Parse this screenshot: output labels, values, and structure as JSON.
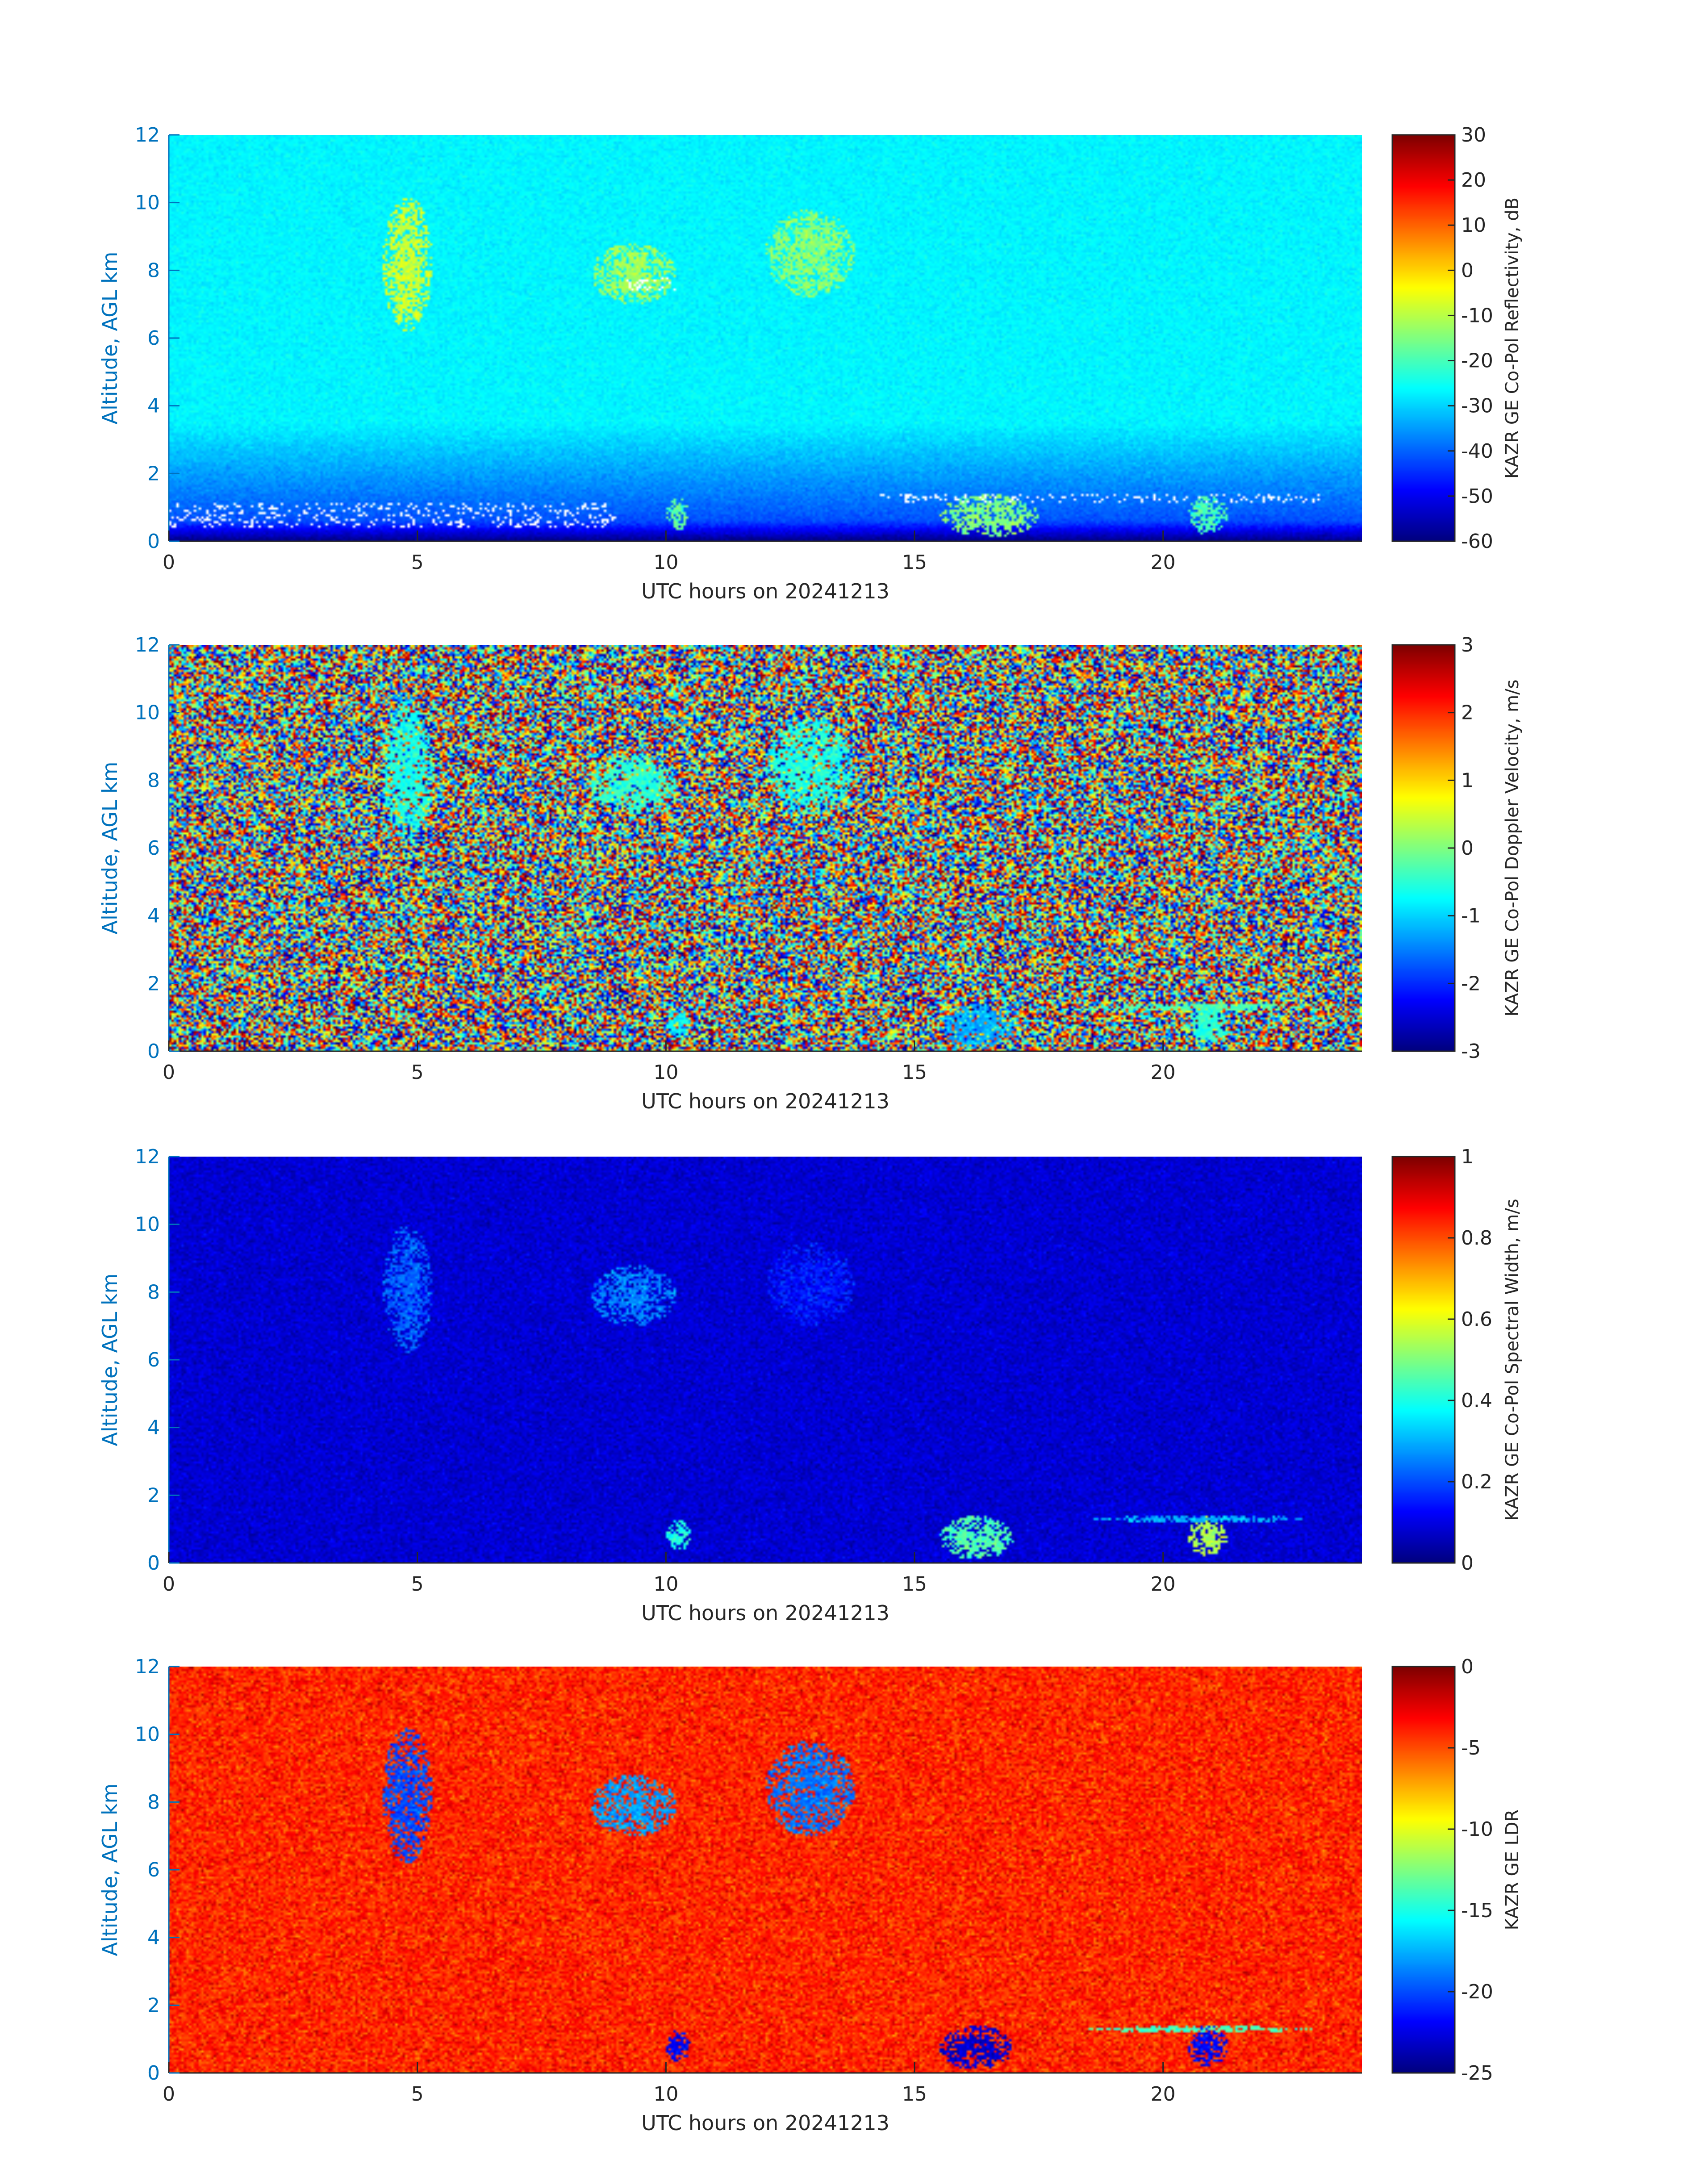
{
  "figure": {
    "panels": [
      {
        "id": "reflectivity",
        "colorbar_label": "KAZR GE Co-Pol Reflectivity, dB"
      },
      {
        "id": "doppler-velocity",
        "colorbar_label": "KAZR GE Co-Pol Doppler Velocity, m/s"
      },
      {
        "id": "spectral-width",
        "colorbar_label": "KAZR GE Co-Pol Spectral Width, m/s"
      },
      {
        "id": "ldr",
        "colorbar_label": "KAZR GE LDR"
      }
    ]
  },
  "colors": {
    "axis_label_blue": "#0072BD",
    "colormap": "jet",
    "missing_data": "#ffffff"
  },
  "chart_data": [
    {
      "type": "heatmap",
      "title": "",
      "xlabel": "UTC hours on 20241213",
      "ylabel": "Altitude, AGL km",
      "xlim": [
        0,
        24
      ],
      "ylim": [
        0,
        12
      ],
      "x_ticks": [
        0,
        5,
        10,
        15,
        20
      ],
      "y_ticks": [
        0,
        2,
        4,
        6,
        8,
        10,
        12
      ],
      "colorbar": {
        "label": "KAZR GE Co-Pol Reflectivity, dB",
        "clim": [
          -60,
          30
        ],
        "ticks": [
          -60,
          -50,
          -40,
          -30,
          -20,
          -10,
          0,
          10,
          20,
          30
        ],
        "colormap": "jet"
      },
      "background": {
        "description": "noise floor increasing with altitude",
        "value_at_0km": -45,
        "value_at_12km": -27
      },
      "features": [
        {
          "x": [
            4.3,
            5.3
          ],
          "y": [
            6.2,
            10.2
          ],
          "value": -8
        },
        {
          "x": [
            8.5,
            10.2
          ],
          "y": [
            7.0,
            8.8
          ],
          "value": -12
        },
        {
          "x": [
            12.0,
            13.8
          ],
          "y": [
            7.2,
            9.8
          ],
          "value": -14
        },
        {
          "x": [
            10.0,
            10.5
          ],
          "y": [
            0.3,
            1.3
          ],
          "value": -18
        },
        {
          "x": [
            15.5,
            17.5
          ],
          "y": [
            0.1,
            1.4
          ],
          "value": -15
        },
        {
          "x": [
            20.5,
            21.3
          ],
          "y": [
            0.2,
            1.4
          ],
          "value": -20
        }
      ],
      "missing_data": [
        {
          "x": [
            0.0,
            9.0
          ],
          "y": [
            0.4,
            1.1
          ]
        },
        {
          "x": [
            14.3,
            23.2
          ],
          "y": [
            1.1,
            1.4
          ]
        },
        {
          "x": [
            9.2,
            10.2
          ],
          "y": [
            7.4,
            7.8
          ]
        }
      ]
    },
    {
      "type": "heatmap",
      "title": "",
      "xlabel": "UTC hours on 20241213",
      "ylabel": "Altitude, AGL km",
      "xlim": [
        0,
        24
      ],
      "ylim": [
        0,
        12
      ],
      "x_ticks": [
        0,
        5,
        10,
        15,
        20
      ],
      "y_ticks": [
        0,
        2,
        4,
        6,
        8,
        10,
        12
      ],
      "colorbar": {
        "label": "KAZR GE Co-Pol Doppler Velocity, m/s",
        "clim": [
          -3,
          3
        ],
        "ticks": [
          -3,
          -2,
          -1,
          0,
          1,
          2,
          3
        ],
        "colormap": "jet"
      },
      "background": {
        "description": "random noise over full range"
      },
      "features": [
        {
          "x": [
            4.3,
            5.3
          ],
          "y": [
            6.2,
            10.4
          ],
          "value": -0.6
        },
        {
          "x": [
            8.5,
            10.2
          ],
          "y": [
            7.0,
            8.8
          ],
          "value": -0.5
        },
        {
          "x": [
            12.0,
            13.8
          ],
          "y": [
            7.0,
            9.8
          ],
          "value": -0.6
        },
        {
          "x": [
            10.0,
            10.5
          ],
          "y": [
            0.3,
            1.3
          ],
          "value": -0.8
        },
        {
          "x": [
            15.5,
            17.0
          ],
          "y": [
            0.1,
            1.4
          ],
          "value": -1.2
        },
        {
          "x": [
            20.5,
            21.3
          ],
          "y": [
            0.2,
            1.4
          ],
          "value": -0.5
        },
        {
          "x": [
            18.5,
            23.0
          ],
          "y": [
            1.2,
            1.4
          ],
          "value": -0.3
        }
      ]
    },
    {
      "type": "heatmap",
      "title": "",
      "xlabel": "UTC hours on 20241213",
      "ylabel": "Altitude, AGL km",
      "xlim": [
        0,
        24
      ],
      "ylim": [
        0,
        12
      ],
      "x_ticks": [
        0,
        5,
        10,
        15,
        20
      ],
      "y_ticks": [
        0,
        2,
        4,
        6,
        8,
        10,
        12
      ],
      "colorbar": {
        "label": "KAZR GE Co-Pol Spectral Width, m/s",
        "clim": [
          0,
          1
        ],
        "ticks": [
          0,
          0.2,
          0.4,
          0.6,
          0.8,
          1
        ],
        "colormap": "jet"
      },
      "background": {
        "description": "low noise",
        "value": 0.08
      },
      "features": [
        {
          "x": [
            4.3,
            5.3
          ],
          "y": [
            6.2,
            10.0
          ],
          "value": 0.22
        },
        {
          "x": [
            8.5,
            10.2
          ],
          "y": [
            7.0,
            8.8
          ],
          "value": 0.25
        },
        {
          "x": [
            12.0,
            13.8
          ],
          "y": [
            7.0,
            9.5
          ],
          "value": 0.15
        },
        {
          "x": [
            10.0,
            10.5
          ],
          "y": [
            0.3,
            1.3
          ],
          "value": 0.4
        },
        {
          "x": [
            15.5,
            17.0
          ],
          "y": [
            0.1,
            1.4
          ],
          "value": 0.45
        },
        {
          "x": [
            20.5,
            21.3
          ],
          "y": [
            0.2,
            1.4
          ],
          "value": 0.55
        },
        {
          "x": [
            18.5,
            23.0
          ],
          "y": [
            1.2,
            1.4
          ],
          "value": 0.3
        }
      ]
    },
    {
      "type": "heatmap",
      "title": "",
      "xlabel": "UTC hours on 20241213",
      "ylabel": "Altitude, AGL km",
      "xlim": [
        0,
        24
      ],
      "ylim": [
        0,
        12
      ],
      "x_ticks": [
        0,
        5,
        10,
        15,
        20
      ],
      "y_ticks": [
        0,
        2,
        4,
        6,
        8,
        10,
        12
      ],
      "colorbar": {
        "label": "KAZR GE LDR",
        "clim": [
          -25,
          0
        ],
        "ticks": [
          -25,
          -20,
          -15,
          -10,
          -5,
          0
        ],
        "colormap": "jet"
      },
      "background": {
        "description": "noise near upper range",
        "value": -4
      },
      "features": [
        {
          "x": [
            4.3,
            5.3
          ],
          "y": [
            6.2,
            10.2
          ],
          "value": -20
        },
        {
          "x": [
            8.5,
            10.2
          ],
          "y": [
            7.0,
            8.8
          ],
          "value": -18
        },
        {
          "x": [
            12.0,
            13.8
          ],
          "y": [
            7.0,
            9.8
          ],
          "value": -19
        },
        {
          "x": [
            10.0,
            10.5
          ],
          "y": [
            0.3,
            1.3
          ],
          "value": -22
        },
        {
          "x": [
            15.5,
            17.0
          ],
          "y": [
            0.1,
            1.4
          ],
          "value": -23
        },
        {
          "x": [
            20.5,
            21.3
          ],
          "y": [
            0.2,
            1.4
          ],
          "value": -22
        },
        {
          "x": [
            18.5,
            23.0
          ],
          "y": [
            1.2,
            1.4
          ],
          "value": -14
        }
      ]
    }
  ]
}
